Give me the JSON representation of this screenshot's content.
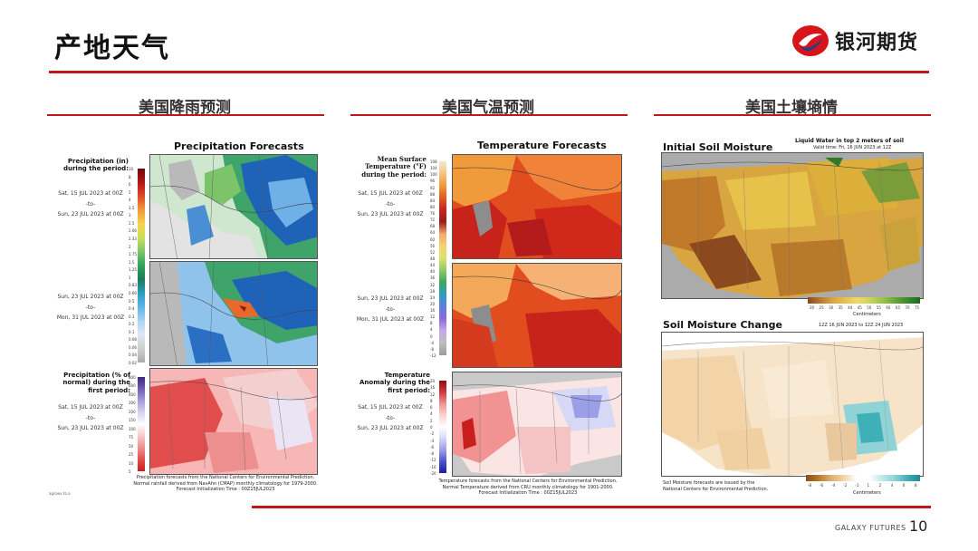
{
  "slide": {
    "title": "产地天气",
    "page_number": "10",
    "footer_brand": "GALAXY FUTURES"
  },
  "logo": {
    "text": "银河期货",
    "colors": {
      "red": "#d7141a",
      "blue": "#1d3f8f"
    }
  },
  "columns": [
    {
      "title": "美国降雨预测"
    },
    {
      "title": "美国气温预测"
    },
    {
      "title": "美国土壤墒情"
    }
  ],
  "precip": {
    "title": "Precipitation Forecasts",
    "legend_label": "Precipitation (in) during the period:",
    "period1": [
      "Sat, 15 JUL 2023 at 00Z",
      "-to-",
      "Sun, 23 JUL 2023 at 00Z"
    ],
    "period2": [
      "Sun, 23 JUL 2023 at 00Z",
      "-to-",
      "Mon, 31 JUL 2023 at 00Z"
    ],
    "anomaly_label": "Precipitation (% of normal) during the first period:",
    "period3": [
      "Sat, 15 JUL 2023 at 00Z",
      "-to-",
      "Sun, 23 JUL 2023 at 00Z"
    ],
    "scale_ticks": [
      "10",
      "8",
      "6",
      "5",
      "4",
      "3.5",
      "3",
      "2.5",
      "2.66",
      "2.33",
      "2",
      "1.75",
      "1.5",
      "1.25",
      "1",
      "0.83",
      "0.66",
      "0.5",
      "0.4",
      "0.3",
      "0.2",
      "0.1",
      "0.08",
      "0.06",
      "0.04",
      "0.02"
    ],
    "pct_ticks": [
      "800",
      "600",
      "400",
      "300",
      "200",
      "150",
      "100",
      "75",
      "50",
      "25",
      "10",
      "5"
    ],
    "footnote": [
      "Precipitation forecasts from the National Centers for Environmental Prediction.",
      "Normal rainfall derived from NavAhn (CMAP) monthly climatology for 1979-2000.",
      "Forecast Initialization Time : 00Z15JUL2023"
    ],
    "corner_note": "agrowx.to.a"
  },
  "temp": {
    "title": "Temperature Forecasts",
    "legend_label": "Mean Surface Temperature (°F) during the period:",
    "period1": [
      "Sat, 15 JUL 2023 at 00Z",
      "-to-",
      "Sun, 23 JUL 2023 at 00Z"
    ],
    "period2": [
      "Sun, 23 JUL 2023 at 00Z",
      "-to-",
      "Mon, 31 JUL 2023 at 00Z"
    ],
    "anomaly_label": "Temperature Anomaly during the first period:",
    "period3": [
      "Sat, 15 JUL 2023 at 00Z",
      "-to-",
      "Sun, 23 JUL 2023 at 00Z"
    ],
    "scale_ticks": [
      "108",
      "104",
      "100",
      "96",
      "92",
      "88",
      "84",
      "80",
      "76",
      "72",
      "68",
      "64",
      "60",
      "56",
      "52",
      "48",
      "44",
      "40",
      "36",
      "32",
      "28",
      "24",
      "20",
      "16",
      "12",
      "8",
      "4",
      "0",
      "-4",
      "-8",
      "-12"
    ],
    "anom_ticks": [
      "20",
      "16",
      "12",
      "8",
      "6",
      "4",
      "2",
      "0",
      "-2",
      "-4",
      "-6",
      "-8",
      "-12",
      "-16",
      "-20"
    ],
    "footnote": [
      "Temperature forecasts from the National Centers for Environmental Prediction.",
      "Normal Temperature derived from CRU monthly climatology for 1901-2000.",
      "Forecast Initialization Time : 00Z15JUL2023"
    ]
  },
  "soil": {
    "title1": "Initial Soil Moisture",
    "header1": "Liquid Water in top 2 meters of soil",
    "valid1": "Valid time: Fri, 16 JUN 2023 at 12Z",
    "scale1_ticks": [
      "20",
      "25",
      "30",
      "35",
      "40",
      "45",
      "50",
      "55",
      "60",
      "65",
      "70",
      "75"
    ],
    "unit": "Centimeters",
    "title2": "Soil Moisture Change",
    "valid2": "12Z 16 JUN 2023 to 12Z 24 JUN 2023",
    "scale2_ticks": [
      "-8",
      "-6",
      "-4",
      "-2",
      "-1",
      "1",
      "2",
      "4",
      "6",
      "8"
    ],
    "footnote": [
      "Soil Moisture forecasts are issued by the",
      "National Centers for Environmental Prediction."
    ]
  }
}
